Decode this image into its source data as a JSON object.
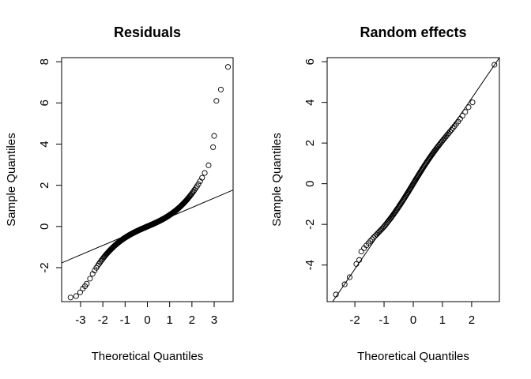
{
  "chart_data": [
    {
      "type": "scatter",
      "title": "Residuals",
      "xlabel": "Theoretical Quantiles",
      "ylabel": "Sample Quantiles",
      "xlim": [
        -3.85,
        3.85
      ],
      "ylim": [
        -3.65,
        8.2
      ],
      "xticks": [
        -3,
        -2,
        -1,
        0,
        1,
        2,
        3
      ],
      "yticks": [
        -2,
        0,
        2,
        4,
        6,
        8
      ],
      "grid": false,
      "reference_line": {
        "intercept": 0,
        "slope": 0.46
      },
      "points_shape": {
        "n": 500,
        "type": "heavy-tailed"
      },
      "tail_points": [
        {
          "x": -3.45,
          "y": -3.45
        },
        {
          "x": -3.2,
          "y": -3.38
        },
        {
          "x": -3.02,
          "y": -3.2
        },
        {
          "x": -2.9,
          "y": -3.02
        },
        {
          "x": -2.8,
          "y": -2.9
        },
        {
          "x": -2.72,
          "y": -2.78
        },
        {
          "x": 2.95,
          "y": 3.85
        },
        {
          "x": 3.0,
          "y": 4.4
        },
        {
          "x": 3.1,
          "y": 6.1
        },
        {
          "x": 3.3,
          "y": 6.65
        },
        {
          "x": 3.62,
          "y": 7.75
        }
      ]
    },
    {
      "type": "scatter",
      "title": "Random effects",
      "xlabel": "Theoretical Quantiles",
      "ylabel": "Sample Quantiles",
      "xlim": [
        -2.95,
        2.95
      ],
      "ylim": [
        -5.8,
        6.2
      ],
      "xticks": [
        -2,
        -1,
        0,
        1,
        2
      ],
      "yticks": [
        -4,
        -2,
        0,
        2,
        4,
        6
      ],
      "grid": false,
      "reference_line": {
        "intercept": 0,
        "slope": 2.1
      },
      "points_shape": {
        "n": 120,
        "type": "near-normal"
      },
      "tail_points": [
        {
          "x": -2.65,
          "y": -5.45
        },
        {
          "x": -2.35,
          "y": -4.95
        },
        {
          "x": -2.18,
          "y": -4.6
        },
        {
          "x": -1.95,
          "y": -3.95
        },
        {
          "x": -1.85,
          "y": -3.75
        },
        {
          "x": 2.03,
          "y": 4.0
        },
        {
          "x": 2.78,
          "y": 5.85
        }
      ]
    }
  ]
}
